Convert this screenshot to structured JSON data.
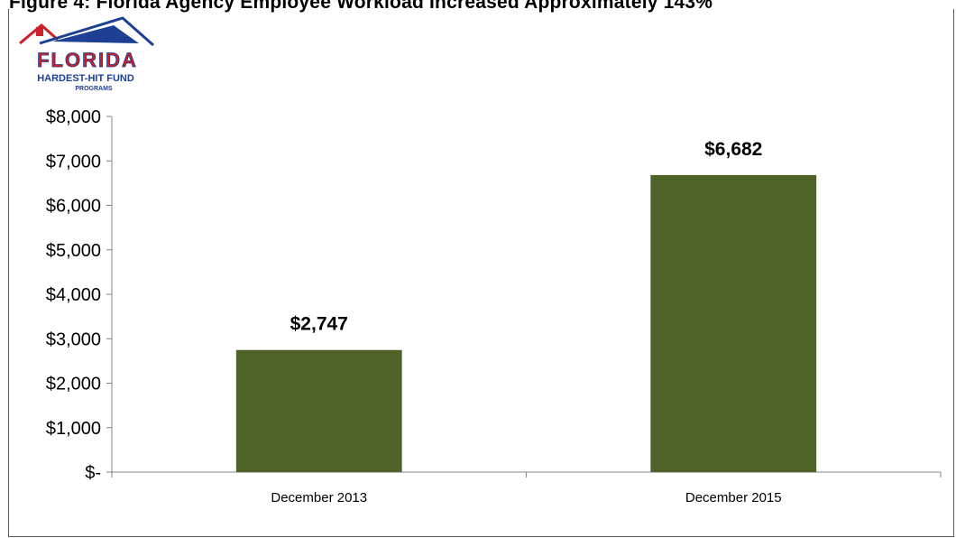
{
  "page": {
    "title": "Figure 4: Florida Agency Employee Workload Increased Approximately 143%"
  },
  "logo": {
    "text_main": "FLORIDA",
    "text_sub": "HARDEST-HIT FUND",
    "text_sub2": "PROGRAMS",
    "colors": {
      "red": "#cc1f26",
      "blue": "#1d3f94"
    }
  },
  "chart_data": {
    "type": "bar",
    "categories": [
      "December 2013",
      "December 2015"
    ],
    "values": [
      2747,
      6682
    ],
    "data_labels": [
      "$2,747",
      "$6,682"
    ],
    "y_ticks": [
      0,
      1000,
      2000,
      3000,
      4000,
      5000,
      6000,
      7000,
      8000
    ],
    "y_tick_labels": [
      "$-",
      "$1,000",
      "$2,000",
      "$3,000",
      "$4,000",
      "$5,000",
      "$6,000",
      "$7,000",
      "$8,000"
    ],
    "ylim": [
      0,
      8000
    ],
    "bar_color": "#4f6228",
    "grid": false,
    "legend": "none"
  }
}
